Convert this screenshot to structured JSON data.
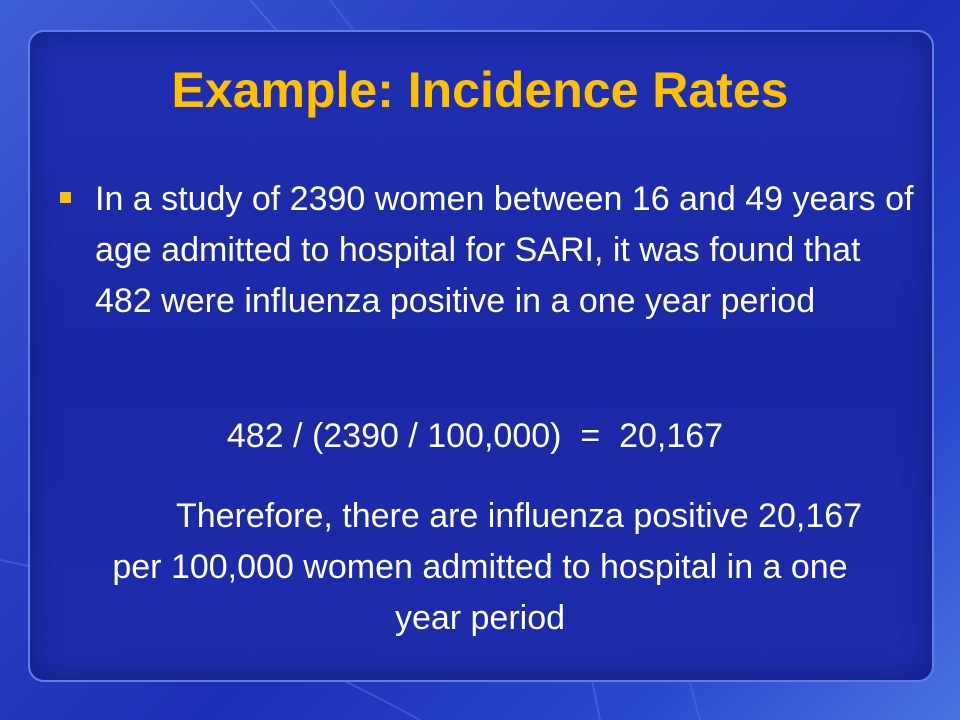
{
  "slide": {
    "title": "Example: Incidence Rates",
    "bullet": "In a study of 2390 women between 16 and 49 years of age admitted to hospital for SARI, it was found that 482 were influenza positive in a one year period",
    "formula": "482 / (2390 / 100,000)  =  20,167",
    "conclusion": "Therefore, there are influenza positive 20,167 per 100,000 women admitted to hospital in a one year period"
  },
  "colors": {
    "title": "#ffc000",
    "text": "#ffffff",
    "background": "#1f2fb0",
    "bullet": "#ffc000"
  }
}
